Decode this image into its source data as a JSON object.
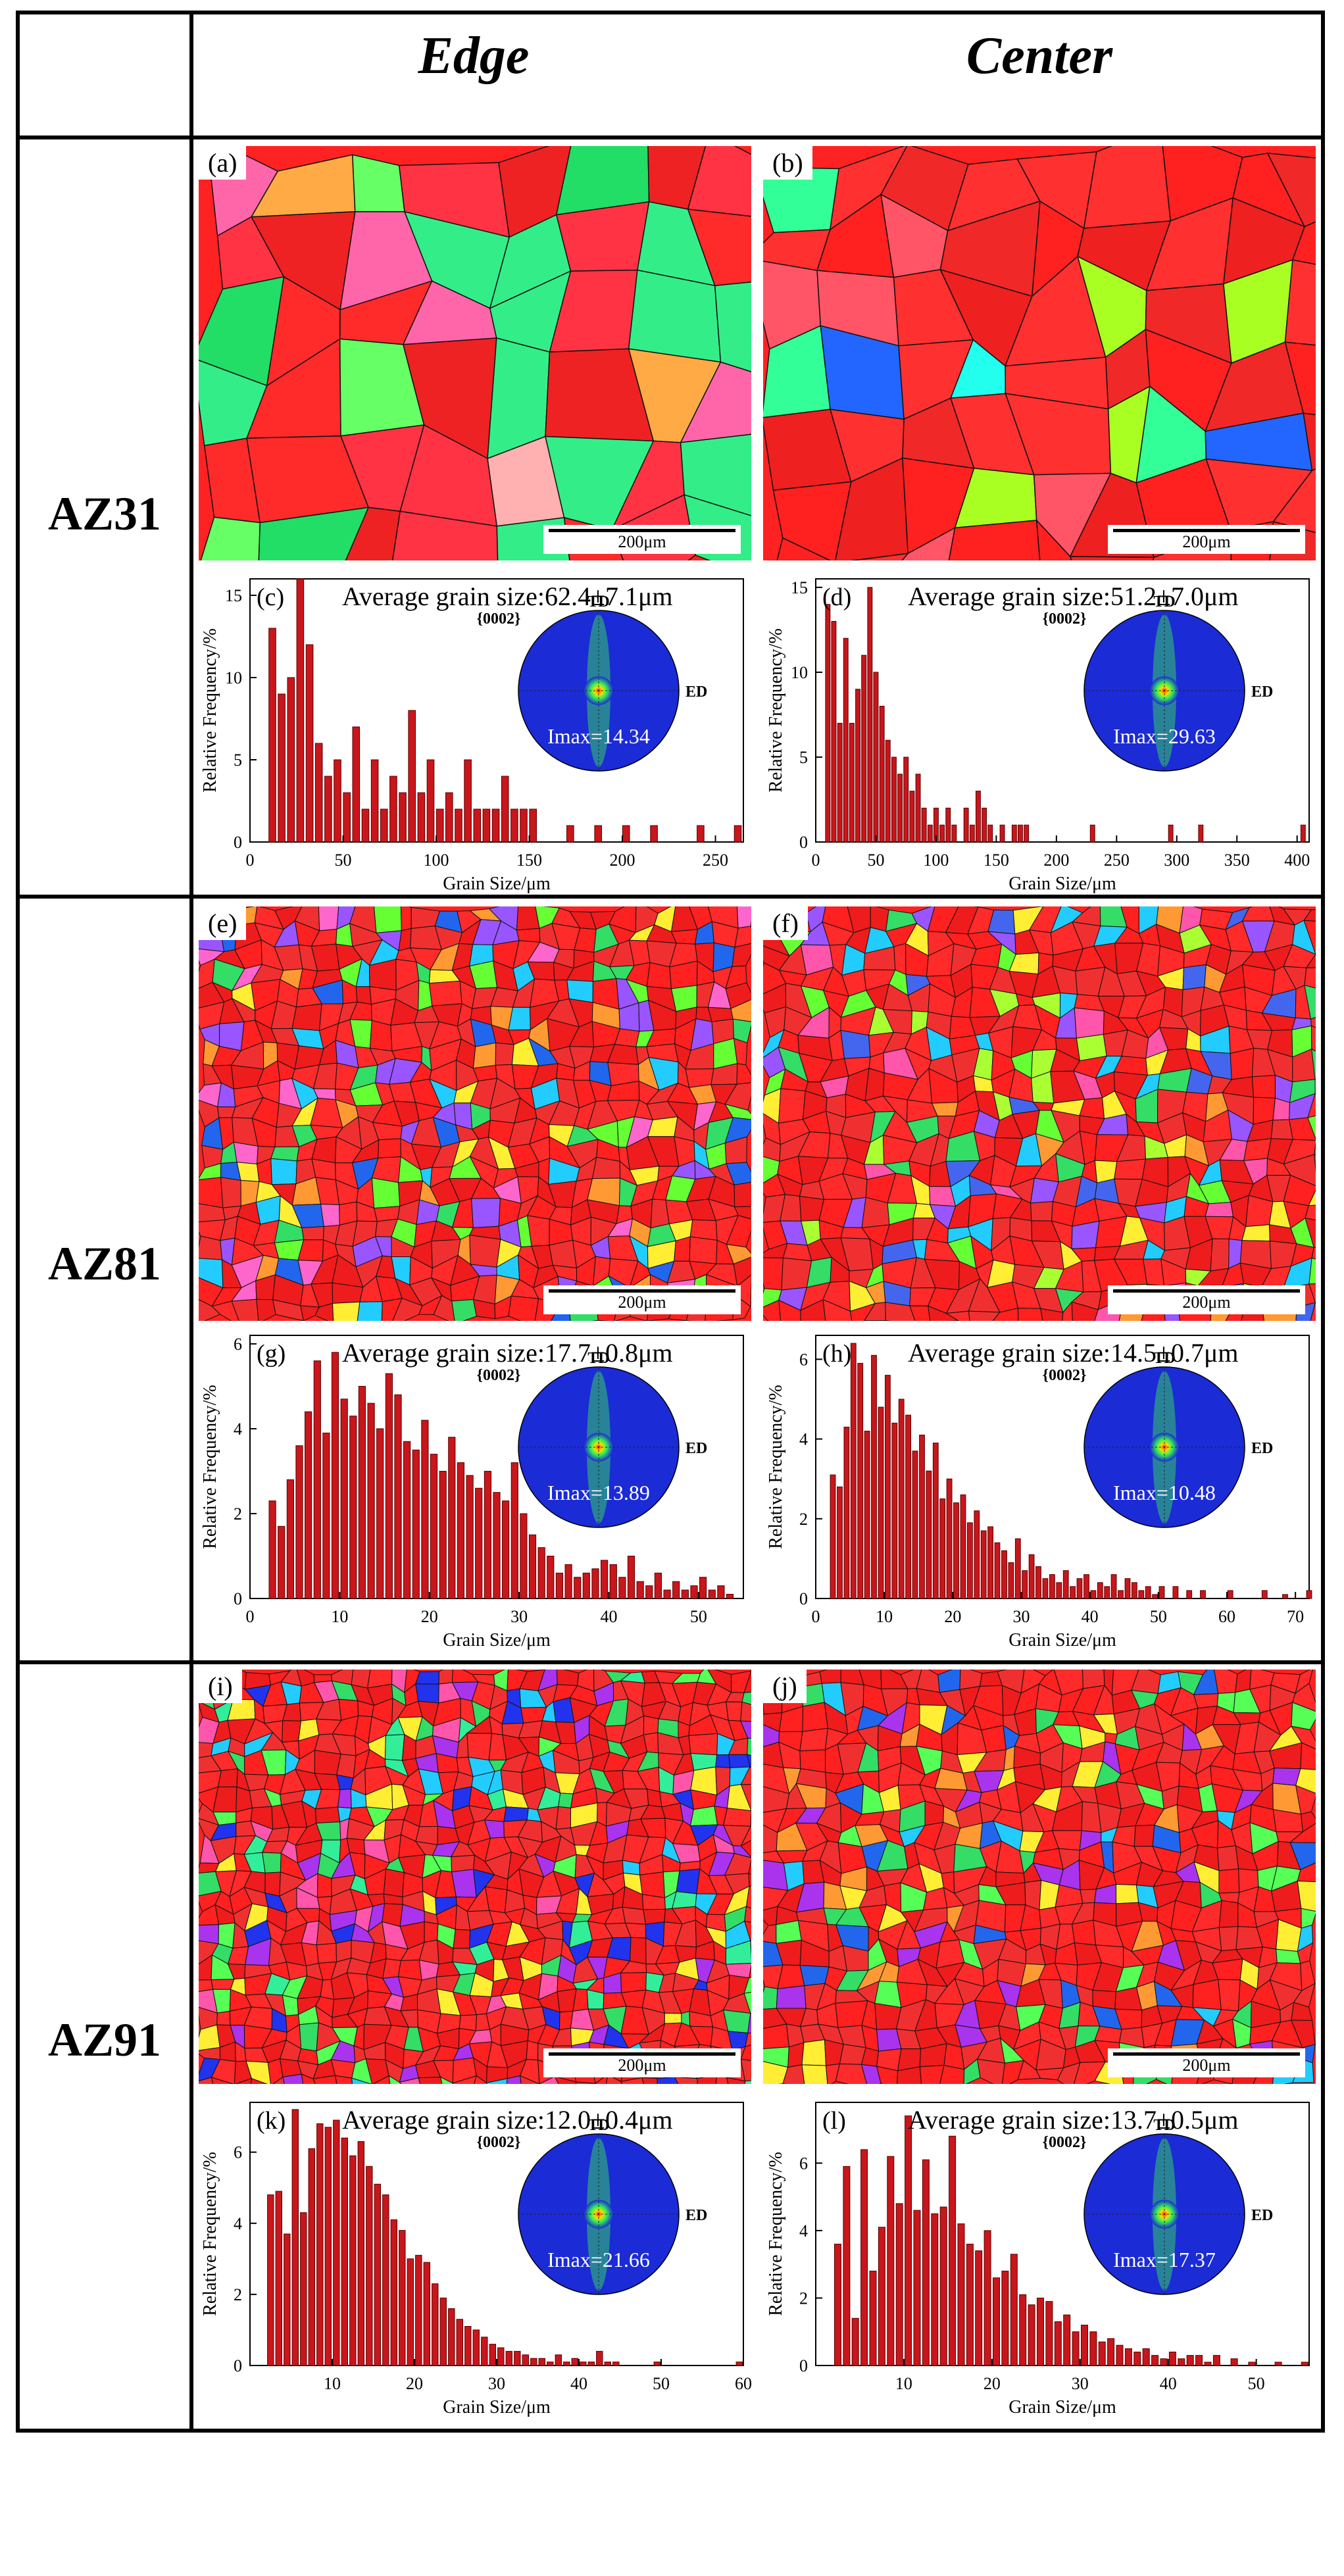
{
  "table": {
    "columns": [
      "Edge",
      "Center"
    ],
    "rows": [
      "AZ31",
      "AZ81",
      "AZ91"
    ]
  },
  "panels": {
    "maps": [
      {
        "label": "(a)",
        "scale": "200μm"
      },
      {
        "label": "(b)",
        "scale": "200μm"
      },
      {
        "label": "(e)",
        "scale": "200μm"
      },
      {
        "label": "(f)",
        "scale": "200μm"
      },
      {
        "label": "(i)",
        "scale": "200μm"
      },
      {
        "label": "(j)",
        "scale": "200μm"
      }
    ]
  },
  "pole_figure": {
    "plane": "{0002}",
    "td": "TD",
    "ed": "ED"
  },
  "colors": {
    "bar": "#c8161b",
    "bar_edge": "#5a0000",
    "pole_bg": "#1b2bd6",
    "pole_hot": "#ff2a00"
  },
  "chart_data": [
    {
      "label": "(c)",
      "type": "bar",
      "title": "Average grain size:62.4±7.1μm",
      "xlabel": "Grain Size/μm",
      "ylabel": "Relative Frequency/%",
      "xlim": [
        0,
        265
      ],
      "ylim": [
        0,
        16
      ],
      "xticks": [
        0,
        50,
        100,
        150,
        200,
        250
      ],
      "yticks": [
        0,
        5,
        10,
        15
      ],
      "x": [
        12,
        17,
        22,
        27,
        32,
        37,
        42,
        47,
        52,
        57,
        62,
        67,
        72,
        77,
        82,
        87,
        92,
        97,
        102,
        107,
        112,
        117,
        122,
        127,
        132,
        137,
        142,
        147,
        152,
        172,
        187,
        202,
        217,
        242,
        262
      ],
      "values": [
        13,
        9,
        10,
        16,
        12,
        6,
        4,
        5,
        3,
        7,
        2,
        5,
        2,
        4,
        3,
        8,
        3,
        5,
        2,
        3,
        2,
        5,
        2,
        2,
        2,
        4,
        2,
        2,
        2,
        1,
        1,
        1,
        1,
        1,
        1
      ],
      "pole_imax": "Imax=14.34"
    },
    {
      "label": "(d)",
      "type": "bar",
      "title": "Average grain size:51.2±7.0μm",
      "xlabel": "Grain Size/μm",
      "ylabel": "Relative Frequency/%",
      "xlim": [
        0,
        410
      ],
      "ylim": [
        0,
        15.5
      ],
      "xticks": [
        0,
        50,
        100,
        150,
        200,
        250,
        300,
        350,
        400
      ],
      "yticks": [
        0,
        5,
        10,
        15
      ],
      "x": [
        10,
        15,
        20,
        25,
        30,
        35,
        40,
        45,
        50,
        55,
        60,
        65,
        70,
        75,
        80,
        85,
        90,
        95,
        100,
        105,
        110,
        115,
        125,
        130,
        135,
        140,
        145,
        155,
        165,
        170,
        175,
        230,
        295,
        320,
        405
      ],
      "values": [
        14,
        13,
        7,
        12,
        7,
        9,
        11,
        15,
        10,
        8,
        6,
        5,
        4,
        5,
        3,
        4,
        2,
        1,
        2,
        1,
        2,
        1,
        2,
        1,
        3,
        2,
        1,
        1,
        1,
        1,
        1,
        1,
        1,
        1,
        1
      ],
      "pole_imax": "Imax=29.63"
    },
    {
      "label": "(g)",
      "type": "bar",
      "title": "Average grain size:17.7±0.8μm",
      "xlabel": "Grain Size/μm",
      "ylabel": "Relative Frequency/%",
      "xlim": [
        0,
        55
      ],
      "ylim": [
        0,
        6.2
      ],
      "xticks": [
        0,
        10,
        20,
        30,
        40,
        50
      ],
      "yticks": [
        0,
        2,
        4,
        6
      ],
      "x": [
        2.5,
        3.5,
        4.5,
        5.5,
        6.5,
        7.5,
        8.5,
        9.5,
        10.5,
        11.5,
        12.5,
        13.5,
        14.5,
        15.5,
        16.5,
        17.5,
        18.5,
        19.5,
        20.5,
        21.5,
        22.5,
        23.5,
        24.5,
        25.5,
        26.5,
        27.5,
        28.5,
        29.5,
        30.5,
        31.5,
        32.5,
        33.5,
        34.5,
        35.5,
        36.5,
        37.5,
        38.5,
        39.5,
        40.5,
        41.5,
        42.5,
        43.5,
        44.5,
        45.5,
        46.5,
        47.5,
        48.5,
        49.5,
        50.5,
        51.5,
        52.5,
        53.5
      ],
      "values": [
        2.3,
        1.7,
        2.8,
        3.6,
        4.4,
        5.6,
        3.9,
        5.8,
        4.7,
        4.3,
        5.0,
        4.6,
        4.0,
        5.3,
        4.8,
        3.7,
        3.5,
        4.2,
        3.4,
        3.0,
        3.8,
        3.2,
        2.9,
        2.6,
        3.0,
        2.5,
        2.3,
        3.2,
        2.0,
        1.5,
        1.2,
        1.0,
        0.6,
        0.8,
        0.5,
        0.6,
        0.7,
        0.9,
        0.8,
        0.5,
        1.0,
        0.4,
        0.3,
        0.6,
        0.2,
        0.4,
        0.2,
        0.3,
        0.5,
        0.2,
        0.3,
        0.1
      ],
      "pole_imax": "Imax=13.89"
    },
    {
      "label": "(h)",
      "type": "bar",
      "title": "Average grain size:14.5±0.7μm",
      "xlabel": "Grain Size/μm",
      "ylabel": "Relative Frequency/%",
      "xlim": [
        0,
        72
      ],
      "ylim": [
        0,
        6.6
      ],
      "xticks": [
        0,
        10,
        20,
        30,
        40,
        50,
        60,
        70
      ],
      "yticks": [
        0,
        2,
        4,
        6
      ],
      "x": [
        2.5,
        3.5,
        4.5,
        5.5,
        6.5,
        7.5,
        8.5,
        9.5,
        10.5,
        11.5,
        12.5,
        13.5,
        14.5,
        15.5,
        16.5,
        17.5,
        18.5,
        19.5,
        20.5,
        21.5,
        22.5,
        23.5,
        24.5,
        25.5,
        26.5,
        27.5,
        28.5,
        29.5,
        30.5,
        31.5,
        32.5,
        33.5,
        34.5,
        35.5,
        36.5,
        37.5,
        38.5,
        39.5,
        40.5,
        41.5,
        42.5,
        43.5,
        44.5,
        45.5,
        46.5,
        47.5,
        48.5,
        49.5,
        50.5,
        52.5,
        54.5,
        56.5,
        60.5,
        65.5,
        68.5,
        72
      ],
      "values": [
        3.1,
        2.8,
        4.3,
        6.4,
        5.9,
        4.2,
        6.1,
        4.8,
        5.6,
        4.4,
        5.0,
        4.6,
        3.7,
        4.1,
        3.2,
        3.9,
        2.5,
        3.0,
        2.4,
        2.6,
        1.9,
        2.2,
        1.7,
        1.8,
        1.4,
        1.2,
        0.9,
        1.5,
        0.7,
        1.1,
        0.8,
        0.5,
        0.6,
        0.4,
        0.7,
        0.3,
        0.5,
        0.6,
        0.2,
        0.4,
        0.3,
        0.6,
        0.2,
        0.5,
        0.4,
        0.2,
        0.3,
        0.1,
        0.3,
        0.3,
        0.2,
        0.2,
        0.2,
        0.2,
        0.1,
        0.2
      ],
      "pole_imax": "Imax=10.48"
    },
    {
      "label": "(k)",
      "type": "bar",
      "title": "Average grain size:12.0±0.4μm",
      "xlabel": "Grain Size/μm",
      "ylabel": "Relative Frequency/%",
      "xlim": [
        0,
        60
      ],
      "ylim": [
        0,
        7.4
      ],
      "xticks": [
        10,
        20,
        30,
        40,
        50,
        60
      ],
      "yticks": [
        0,
        2,
        4,
        6
      ],
      "x": [
        2.5,
        3.5,
        4.5,
        5.5,
        6.5,
        7.5,
        8.5,
        9.5,
        10.5,
        11.5,
        12.5,
        13.5,
        14.5,
        15.5,
        16.5,
        17.5,
        18.5,
        19.5,
        20.5,
        21.5,
        22.5,
        23.5,
        24.5,
        25.5,
        26.5,
        27.5,
        28.5,
        29.5,
        30.5,
        31.5,
        32.5,
        33.5,
        34.5,
        35.5,
        36.5,
        37.5,
        38.5,
        39.5,
        40.5,
        41.5,
        42.5,
        43.5,
        44.5,
        49.5,
        59.5
      ],
      "values": [
        4.8,
        4.9,
        3.7,
        7.2,
        4.3,
        6.1,
        6.8,
        6.7,
        6.9,
        6.4,
        5.9,
        6.3,
        5.6,
        5.1,
        4.8,
        4.1,
        3.8,
        3.0,
        3.1,
        2.9,
        2.3,
        1.9,
        1.6,
        1.3,
        1.1,
        1.0,
        0.8,
        0.6,
        0.5,
        0.4,
        0.4,
        0.3,
        0.2,
        0.2,
        0.1,
        0.3,
        0.1,
        0.2,
        0.1,
        0.1,
        0.4,
        0.1,
        0.1,
        0.1,
        0.1
      ],
      "pole_imax": "Imax=21.66"
    },
    {
      "label": "(l)",
      "type": "bar",
      "title": "Average grain size:13.7±0.5μm",
      "xlabel": "Grain Size/μm",
      "ylabel": "Relative Frequency/%",
      "xlim": [
        0,
        56
      ],
      "ylim": [
        0,
        7.8
      ],
      "xticks": [
        10,
        20,
        30,
        40,
        50
      ],
      "yticks": [
        0,
        2,
        4,
        6
      ],
      "x": [
        2.5,
        3.5,
        4.5,
        5.5,
        6.5,
        7.5,
        8.5,
        9.5,
        10.5,
        11.5,
        12.5,
        13.5,
        14.5,
        15.5,
        16.5,
        17.5,
        18.5,
        19.5,
        20.5,
        21.5,
        22.5,
        23.5,
        24.5,
        25.5,
        26.5,
        27.5,
        28.5,
        29.5,
        30.5,
        31.5,
        32.5,
        33.5,
        34.5,
        35.5,
        36.5,
        37.5,
        38.5,
        39.5,
        40.5,
        41.5,
        42.5,
        43.5,
        44.5,
        45.5,
        47.5,
        49.5,
        52.5,
        55.5
      ],
      "values": [
        3.6,
        5.9,
        1.4,
        6.4,
        2.8,
        4.1,
        6.2,
        4.8,
        7.4,
        4.6,
        6.1,
        4.5,
        4.7,
        6.8,
        4.2,
        3.6,
        3.4,
        4.0,
        2.6,
        2.8,
        3.3,
        2.1,
        1.8,
        2.0,
        1.9,
        1.3,
        1.5,
        1.0,
        1.2,
        1.0,
        0.7,
        0.8,
        0.6,
        0.5,
        0.4,
        0.5,
        0.3,
        0.2,
        0.4,
        0.2,
        0.3,
        0.3,
        0.1,
        0.3,
        0.2,
        0.1,
        0.1,
        0.1
      ],
      "pole_imax": "Imax=17.37"
    }
  ]
}
